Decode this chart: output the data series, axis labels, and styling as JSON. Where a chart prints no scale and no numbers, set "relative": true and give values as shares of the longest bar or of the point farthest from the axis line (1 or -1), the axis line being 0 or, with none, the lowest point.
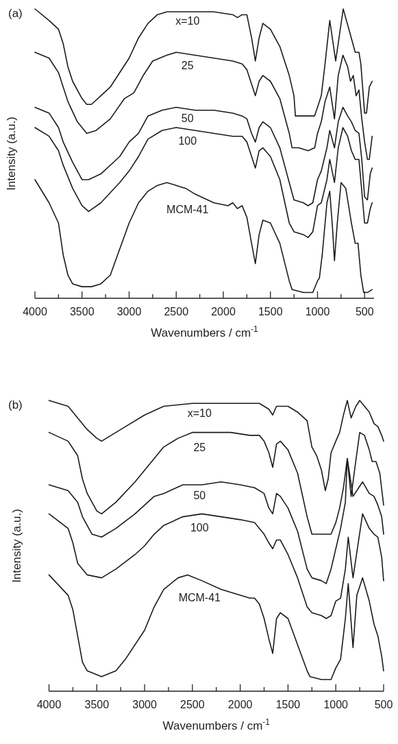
{
  "chart_data": [
    {
      "type": "line",
      "title": "(a)",
      "xlabel": "Wavenumbers / cm$^{-1}$",
      "ylabel": "Intensity (a.u.)",
      "relative": true,
      "xlim": [
        4000,
        400
      ],
      "xticks": [
        4000,
        {
          "value": 3750,
          "label": null
        },
        3500,
        {
          "value": 3250,
          "label": null
        },
        3000,
        {
          "value": 2750,
          "label": null
        },
        2500,
        {
          "value": 2250,
          "label": null
        },
        2000,
        {
          "value": 1750,
          "label": null
        },
        1500,
        {
          "value": 1250,
          "label": null
        },
        1000,
        {
          "value": 750,
          "label": null
        },
        500
      ],
      "tick_labels": "x",
      "grid": false,
      "marker": "none",
      "line_style": "solid",
      "series": [
        {
          "name": "x=10",
          "color": "#1a1a1a",
          "x": [
            4000,
            3850,
            3750,
            3700,
            3650,
            3600,
            3500,
            3450,
            3400,
            3300,
            3200,
            3000,
            2900,
            2800,
            2700,
            2600,
            2500,
            2300,
            2100,
            1900,
            1850,
            1800,
            1750,
            1700,
            1660,
            1620,
            1580,
            1500,
            1400,
            1300,
            1250,
            1235,
            1150,
            1032,
            1000,
            960,
            920,
            870,
            807,
            727,
            650,
            600,
            560,
            540,
            500,
            480,
            450,
            420
          ],
          "values": [
            1.0,
            0.96,
            0.93,
            0.88,
            0.8,
            0.75,
            0.69,
            0.67,
            0.67,
            0.7,
            0.73,
            0.83,
            0.9,
            0.95,
            0.98,
            0.99,
            0.99,
            0.99,
            0.99,
            0.98,
            0.97,
            0.98,
            0.98,
            0.9,
            0.82,
            0.9,
            0.95,
            0.93,
            0.87,
            0.77,
            0.7,
            0.63,
            0.63,
            0.63,
            0.66,
            0.7,
            0.81,
            0.96,
            0.82,
            1.0,
            0.91,
            0.85,
            0.85,
            0.81,
            0.64,
            0.64,
            0.73,
            0.75
          ]
        },
        {
          "name": "25",
          "color": "#1a1a1a",
          "x": [
            4000,
            3850,
            3750,
            3700,
            3650,
            3550,
            3450,
            3350,
            3200,
            3050,
            2950,
            2850,
            2750,
            2600,
            2500,
            2300,
            2100,
            1900,
            1800,
            1750,
            1700,
            1660,
            1620,
            1580,
            1500,
            1400,
            1300,
            1270,
            1200,
            1100,
            1030,
            1000,
            960,
            920,
            870,
            820,
            780,
            730,
            680,
            650,
            620,
            590,
            560,
            530,
            500,
            470,
            450,
            420
          ],
          "values": [
            0.85,
            0.83,
            0.78,
            0.73,
            0.68,
            0.61,
            0.57,
            0.58,
            0.62,
            0.69,
            0.71,
            0.77,
            0.82,
            0.84,
            0.85,
            0.84,
            0.83,
            0.82,
            0.81,
            0.79,
            0.74,
            0.7,
            0.75,
            0.77,
            0.75,
            0.69,
            0.57,
            0.52,
            0.52,
            0.51,
            0.52,
            0.57,
            0.61,
            0.68,
            0.73,
            0.62,
            0.77,
            0.84,
            0.8,
            0.75,
            0.77,
            0.7,
            0.72,
            0.62,
            0.54,
            0.48,
            0.48,
            0.56
          ]
        },
        {
          "name": "50",
          "color": "#1a1a1a",
          "x": [
            4000,
            3850,
            3750,
            3700,
            3600,
            3500,
            3430,
            3300,
            3100,
            3000,
            2900,
            2800,
            2650,
            2500,
            2300,
            2100,
            1900,
            1800,
            1750,
            1700,
            1660,
            1620,
            1580,
            1500,
            1400,
            1300,
            1250,
            1150,
            1100,
            1050,
            1000,
            960,
            900,
            870,
            820,
            780,
            730,
            680,
            640,
            600,
            560,
            530,
            500,
            470,
            440,
            420
          ],
          "values": [
            0.66,
            0.64,
            0.59,
            0.54,
            0.47,
            0.41,
            0.41,
            0.43,
            0.49,
            0.54,
            0.57,
            0.63,
            0.65,
            0.66,
            0.65,
            0.65,
            0.64,
            0.63,
            0.62,
            0.57,
            0.54,
            0.59,
            0.61,
            0.59,
            0.52,
            0.4,
            0.34,
            0.33,
            0.32,
            0.33,
            0.41,
            0.44,
            0.52,
            0.58,
            0.52,
            0.61,
            0.66,
            0.63,
            0.61,
            0.58,
            0.57,
            0.48,
            0.35,
            0.34,
            0.43,
            0.45
          ]
        },
        {
          "name": "100",
          "color": "#1a1a1a",
          "x": [
            4000,
            3850,
            3750,
            3700,
            3600,
            3500,
            3430,
            3300,
            3100,
            3000,
            2900,
            2800,
            2650,
            2500,
            2300,
            2100,
            1900,
            1800,
            1750,
            1700,
            1660,
            1620,
            1580,
            1500,
            1400,
            1300,
            1250,
            1150,
            1100,
            1050,
            1000,
            960,
            900,
            870,
            820,
            780,
            730,
            680,
            640,
            600,
            560,
            530,
            500,
            470,
            440,
            420
          ],
          "values": [
            0.59,
            0.56,
            0.51,
            0.46,
            0.38,
            0.32,
            0.3,
            0.33,
            0.4,
            0.44,
            0.49,
            0.55,
            0.58,
            0.59,
            0.58,
            0.57,
            0.56,
            0.56,
            0.54,
            0.49,
            0.45,
            0.51,
            0.52,
            0.49,
            0.41,
            0.26,
            0.23,
            0.22,
            0.21,
            0.23,
            0.32,
            0.33,
            0.41,
            0.48,
            0.4,
            0.52,
            0.59,
            0.56,
            0.51,
            0.48,
            0.48,
            0.37,
            0.26,
            0.26,
            0.31,
            0.33
          ]
        },
        {
          "name": "MCM-41",
          "color": "#1a1a1a",
          "x": [
            4000,
            3850,
            3750,
            3700,
            3650,
            3600,
            3500,
            3400,
            3300,
            3200,
            3100,
            3000,
            2900,
            2800,
            2700,
            2600,
            2500,
            2400,
            2300,
            2100,
            1950,
            1900,
            1850,
            1800,
            1750,
            1700,
            1660,
            1620,
            1580,
            1500,
            1400,
            1300,
            1270,
            1150,
            1050,
            1000,
            980,
            950,
            900,
            870,
            840,
            820,
            790,
            750,
            700,
            640,
            600,
            570,
            540,
            510,
            470,
            420
          ],
          "values": [
            0.41,
            0.33,
            0.26,
            0.15,
            0.08,
            0.05,
            0.04,
            0.04,
            0.05,
            0.08,
            0.17,
            0.26,
            0.33,
            0.37,
            0.39,
            0.4,
            0.39,
            0.38,
            0.36,
            0.33,
            0.32,
            0.33,
            0.31,
            0.32,
            0.28,
            0.19,
            0.12,
            0.22,
            0.27,
            0.26,
            0.19,
            0.06,
            0.03,
            0.02,
            0.02,
            0.06,
            0.07,
            0.15,
            0.33,
            0.37,
            0.24,
            0.13,
            0.26,
            0.4,
            0.38,
            0.26,
            0.19,
            0.19,
            0.08,
            0.02,
            0.02,
            0.03
          ]
        }
      ]
    },
    {
      "type": "line",
      "title": "(b)",
      "xlabel": "Wavenumbers / cm$^{-1}$",
      "ylabel": "Intensity (a.u.)",
      "relative": true,
      "xlim": [
        4000,
        500
      ],
      "xticks": [
        4000,
        {
          "value": 3750,
          "label": null
        },
        3500,
        {
          "value": 3250,
          "label": null
        },
        3000,
        {
          "value": 2750,
          "label": null
        },
        2500,
        {
          "value": 2250,
          "label": null
        },
        2000,
        {
          "value": 1750,
          "label": null
        },
        1500,
        {
          "value": 1250,
          "label": null
        },
        1000,
        {
          "value": 750,
          "label": null
        },
        500
      ],
      "tick_labels": "x",
      "grid": false,
      "marker": "none",
      "line_style": "solid",
      "series": [
        {
          "name": "x=10",
          "color": "#1a1a1a",
          "x": [
            4000,
            3800,
            3700,
            3600,
            3500,
            3450,
            3350,
            3200,
            3000,
            2800,
            2500,
            2200,
            2000,
            1800,
            1700,
            1660,
            1620,
            1500,
            1400,
            1300,
            1250,
            1200,
            1150,
            1110,
            1080,
            1050,
            1000,
            960,
            920,
            880,
            840,
            790,
            750,
            700,
            650,
            600,
            560,
            520,
            500
          ],
          "values": [
            1.0,
            0.98,
            0.94,
            0.9,
            0.87,
            0.86,
            0.88,
            0.91,
            0.95,
            0.98,
            0.99,
            0.99,
            0.99,
            0.99,
            0.97,
            0.95,
            0.98,
            0.98,
            0.96,
            0.93,
            0.84,
            0.81,
            0.76,
            0.69,
            0.73,
            0.82,
            0.86,
            0.89,
            0.95,
            1.0,
            0.94,
            0.98,
            1.0,
            0.98,
            0.96,
            0.92,
            0.91,
            0.88,
            0.86
          ]
        },
        {
          "name": "25",
          "color": "#1a1a1a",
          "x": [
            4000,
            3800,
            3700,
            3650,
            3600,
            3500,
            3450,
            3300,
            3100,
            3000,
            2900,
            2800,
            2650,
            2500,
            2300,
            2100,
            1900,
            1800,
            1750,
            1700,
            1660,
            1620,
            1580,
            1500,
            1400,
            1300,
            1250,
            1150,
            1050,
            1000,
            960,
            920,
            880,
            840,
            800,
            750,
            700,
            650,
            620,
            580,
            540,
            500
          ],
          "values": [
            0.89,
            0.86,
            0.81,
            0.73,
            0.68,
            0.62,
            0.61,
            0.65,
            0.72,
            0.76,
            0.8,
            0.84,
            0.87,
            0.89,
            0.89,
            0.89,
            0.88,
            0.88,
            0.86,
            0.82,
            0.77,
            0.85,
            0.86,
            0.83,
            0.75,
            0.6,
            0.54,
            0.54,
            0.54,
            0.58,
            0.63,
            0.7,
            0.8,
            0.67,
            0.77,
            0.89,
            0.88,
            0.83,
            0.79,
            0.79,
            0.75,
            0.64
          ]
        },
        {
          "name": "50",
          "color": "#1a1a1a",
          "x": [
            4000,
            3800,
            3700,
            3650,
            3550,
            3450,
            3300,
            3100,
            3000,
            2900,
            2800,
            2600,
            2400,
            2200,
            2000,
            1850,
            1750,
            1700,
            1660,
            1620,
            1580,
            1500,
            1400,
            1300,
            1250,
            1150,
            1100,
            1050,
            1000,
            950,
            900,
            880,
            820,
            720,
            650,
            600,
            560,
            520,
            500
          ],
          "values": [
            0.71,
            0.69,
            0.65,
            0.6,
            0.54,
            0.53,
            0.56,
            0.61,
            0.64,
            0.67,
            0.68,
            0.71,
            0.71,
            0.72,
            0.71,
            0.7,
            0.68,
            0.63,
            0.61,
            0.68,
            0.67,
            0.63,
            0.55,
            0.42,
            0.39,
            0.38,
            0.37,
            0.42,
            0.49,
            0.56,
            0.65,
            0.8,
            0.67,
            0.72,
            0.68,
            0.67,
            0.64,
            0.6,
            0.54
          ]
        },
        {
          "name": "100",
          "color": "#1a1a1a",
          "x": [
            4000,
            3800,
            3750,
            3700,
            3600,
            3450,
            3300,
            3100,
            3000,
            2900,
            2800,
            2600,
            2400,
            2200,
            2000,
            1850,
            1750,
            1700,
            1660,
            1620,
            1580,
            1500,
            1400,
            1300,
            1250,
            1150,
            1100,
            1050,
            1000,
            950,
            900,
            870,
            820,
            720,
            650,
            600,
            560,
            520,
            500
          ],
          "values": [
            0.61,
            0.56,
            0.51,
            0.44,
            0.4,
            0.39,
            0.42,
            0.47,
            0.5,
            0.54,
            0.57,
            0.6,
            0.61,
            0.6,
            0.59,
            0.58,
            0.54,
            0.51,
            0.49,
            0.52,
            0.52,
            0.47,
            0.39,
            0.29,
            0.27,
            0.26,
            0.25,
            0.26,
            0.31,
            0.32,
            0.42,
            0.53,
            0.39,
            0.61,
            0.56,
            0.54,
            0.53,
            0.46,
            0.38
          ]
        },
        {
          "name": "MCM-41",
          "color": "#1a1a1a",
          "x": [
            4000,
            3800,
            3750,
            3700,
            3650,
            3600,
            3450,
            3300,
            3200,
            3000,
            2900,
            2800,
            2650,
            2550,
            2400,
            2200,
            2000,
            1900,
            1850,
            1800,
            1750,
            1700,
            1660,
            1620,
            1580,
            1500,
            1400,
            1300,
            1270,
            1150,
            1050,
            1000,
            950,
            900,
            870,
            820,
            780,
            720,
            650,
            600,
            560,
            520,
            500
          ],
          "values": [
            0.4,
            0.33,
            0.28,
            0.19,
            0.1,
            0.07,
            0.05,
            0.07,
            0.11,
            0.21,
            0.29,
            0.35,
            0.39,
            0.4,
            0.38,
            0.35,
            0.33,
            0.32,
            0.32,
            0.3,
            0.25,
            0.18,
            0.13,
            0.25,
            0.27,
            0.25,
            0.16,
            0.07,
            0.05,
            0.04,
            0.04,
            0.08,
            0.11,
            0.25,
            0.37,
            0.15,
            0.33,
            0.39,
            0.31,
            0.23,
            0.19,
            0.12,
            0.07
          ]
        }
      ]
    }
  ]
}
